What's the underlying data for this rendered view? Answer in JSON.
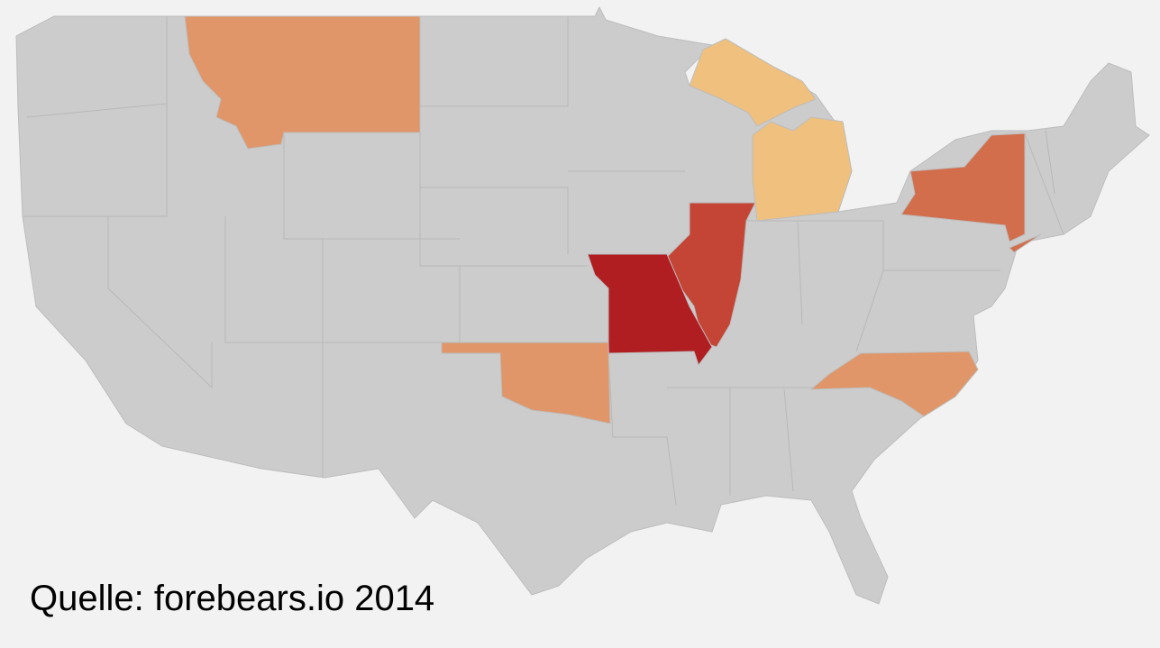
{
  "source": "Quelle: forebears.io 2014"
}
